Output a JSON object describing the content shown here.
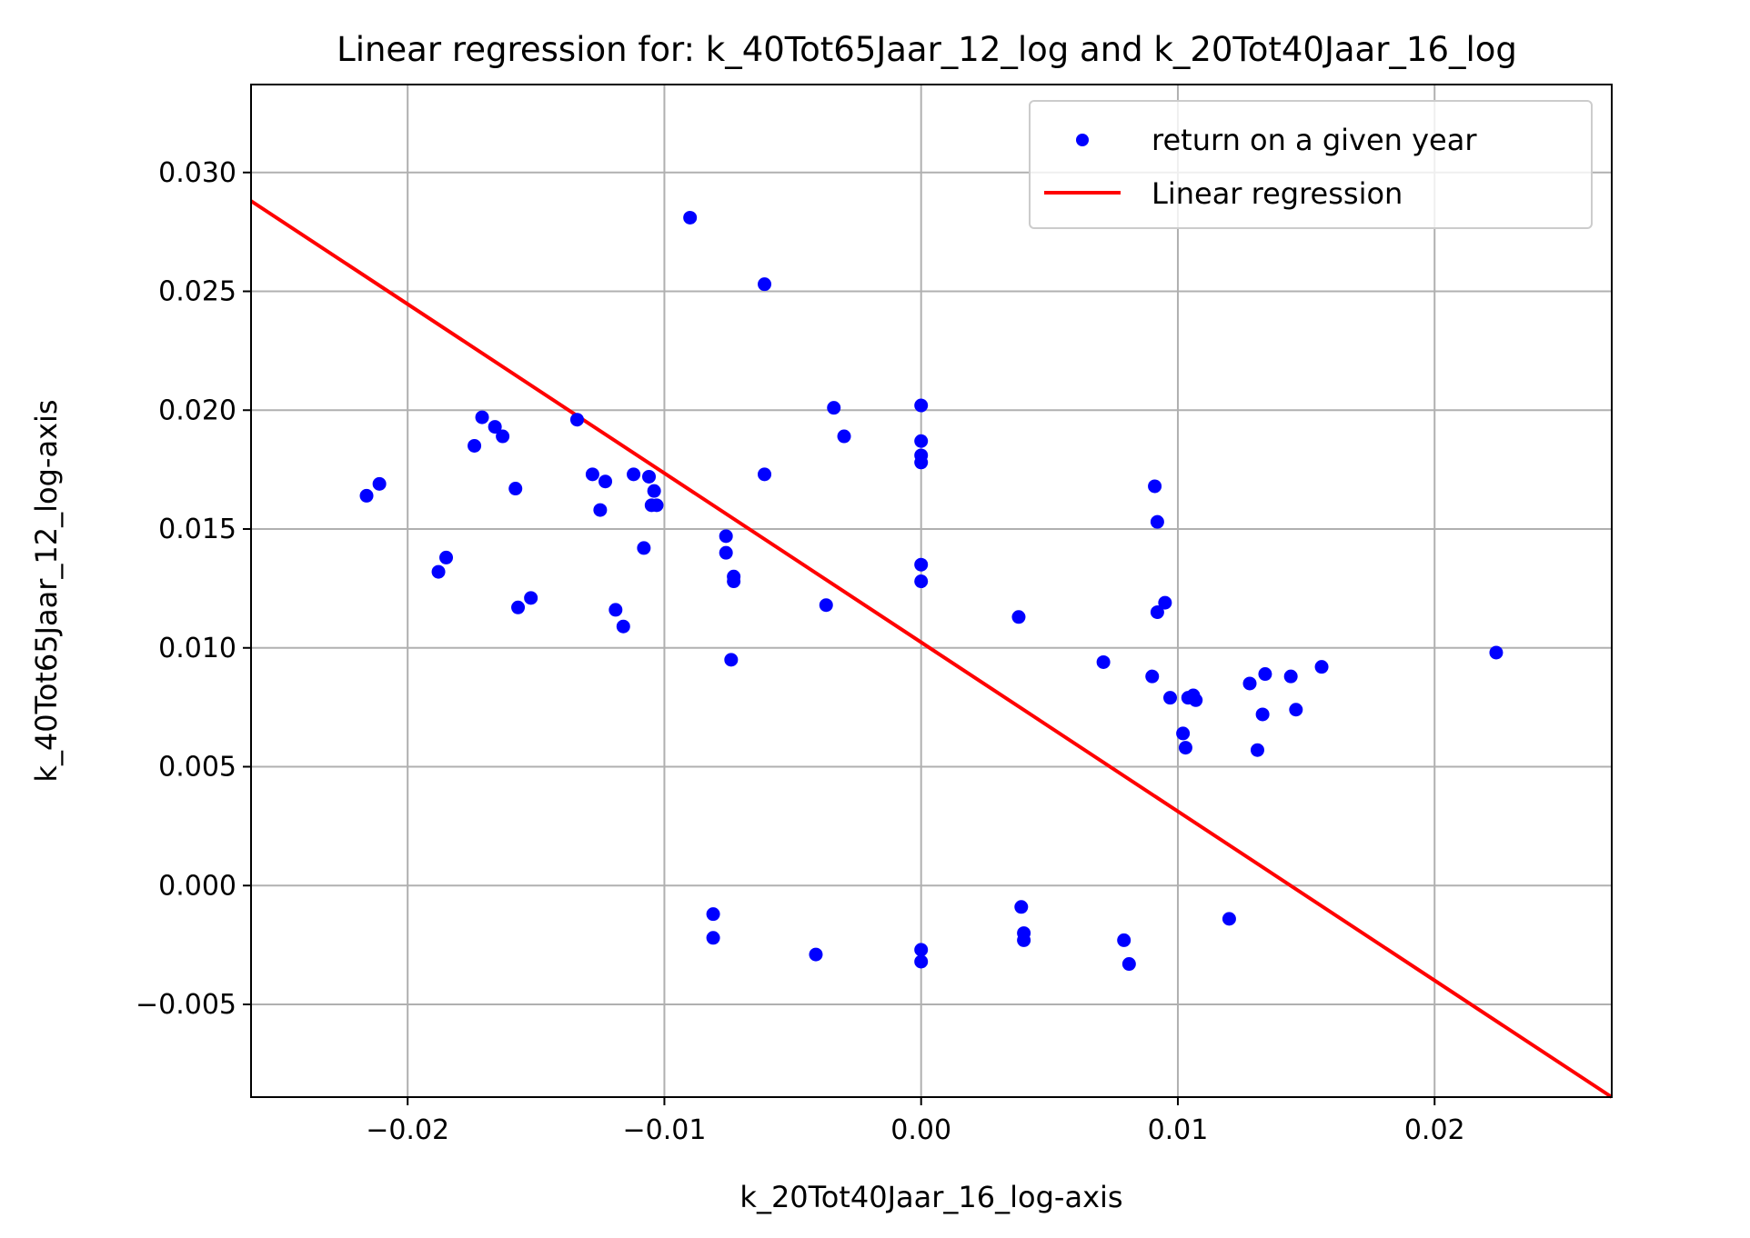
{
  "chart_data": {
    "type": "scatter",
    "title": "Linear regression for: k_40Tot65Jaar_12_log and k_20Tot40Jaar_16_log",
    "xlabel": "k_20Tot40Jaar_16_log-axis",
    "ylabel": "k_40Tot65Jaar_12_log-axis",
    "xlim": [
      -0.0261,
      0.0269
    ],
    "ylim": [
      -0.0089,
      0.0337
    ],
    "grid": true,
    "legend_position": "top-right",
    "x_ticks": [
      -0.02,
      -0.01,
      0.0,
      0.01,
      0.02
    ],
    "x_tick_labels": [
      "−0.02",
      "−0.01",
      "0.00",
      "0.01",
      "0.02"
    ],
    "y_ticks": [
      -0.005,
      0.0,
      0.005,
      0.01,
      0.015,
      0.02,
      0.025,
      0.03
    ],
    "y_tick_labels": [
      "−0.005",
      "0.000",
      "0.005",
      "0.010",
      "0.015",
      "0.020",
      "0.025",
      "0.030"
    ],
    "series": [
      {
        "name": "return on a given year",
        "kind": "scatter",
        "color": "#0000ff",
        "points": [
          [
            -0.0216,
            0.0164
          ],
          [
            -0.0211,
            0.0169
          ],
          [
            -0.0188,
            0.0132
          ],
          [
            -0.0185,
            0.0138
          ],
          [
            -0.0174,
            0.0185
          ],
          [
            -0.0171,
            0.0197
          ],
          [
            -0.0166,
            0.0193
          ],
          [
            -0.0163,
            0.0189
          ],
          [
            -0.0158,
            0.0167
          ],
          [
            -0.0157,
            0.0117
          ],
          [
            -0.0152,
            0.0121
          ],
          [
            -0.0134,
            0.0196
          ],
          [
            -0.0128,
            0.0173
          ],
          [
            -0.0125,
            0.0158
          ],
          [
            -0.0123,
            0.017
          ],
          [
            -0.0119,
            0.0116
          ],
          [
            -0.0116,
            0.0109
          ],
          [
            -0.0112,
            0.0173
          ],
          [
            -0.0108,
            0.0142
          ],
          [
            -0.0106,
            0.0172
          ],
          [
            -0.0105,
            0.016
          ],
          [
            -0.0104,
            0.0166
          ],
          [
            -0.0103,
            0.016
          ],
          [
            -0.009,
            0.0281
          ],
          [
            -0.0076,
            0.0147
          ],
          [
            -0.0076,
            0.014
          ],
          [
            -0.0074,
            0.0095
          ],
          [
            -0.0073,
            0.013
          ],
          [
            -0.0073,
            0.0128
          ],
          [
            -0.0061,
            0.0253
          ],
          [
            -0.0061,
            0.0173
          ],
          [
            -0.0037,
            0.0118
          ],
          [
            -0.0034,
            0.0201
          ],
          [
            -0.003,
            0.0189
          ],
          [
            0.0,
            0.0202
          ],
          [
            0.0,
            0.0187
          ],
          [
            0.0,
            0.0181
          ],
          [
            0.0,
            0.0178
          ],
          [
            0.0,
            0.0135
          ],
          [
            0.0,
            0.0128
          ],
          [
            0.0038,
            0.0113
          ],
          [
            0.0071,
            0.0094
          ],
          [
            0.009,
            0.0088
          ],
          [
            0.0091,
            0.0168
          ],
          [
            0.0092,
            0.0153
          ],
          [
            0.0092,
            0.0115
          ],
          [
            0.0095,
            0.0119
          ],
          [
            0.0097,
            0.0079
          ],
          [
            0.0102,
            0.0064
          ],
          [
            0.0103,
            0.0058
          ],
          [
            0.0104,
            0.0079
          ],
          [
            0.0106,
            0.008
          ],
          [
            0.0107,
            0.0078
          ],
          [
            0.0128,
            0.0085
          ],
          [
            0.0131,
            0.0057
          ],
          [
            0.0133,
            0.0072
          ],
          [
            0.0134,
            0.0089
          ],
          [
            0.0144,
            0.0088
          ],
          [
            0.0146,
            0.0074
          ],
          [
            0.0156,
            0.0092
          ],
          [
            0.0224,
            0.0098
          ],
          [
            -0.0081,
            -0.0012
          ],
          [
            -0.0081,
            -0.0022
          ],
          [
            -0.0041,
            -0.0029
          ],
          [
            0.0,
            -0.0027
          ],
          [
            0.0,
            -0.0032
          ],
          [
            0.0039,
            -0.0009
          ],
          [
            0.004,
            -0.002
          ],
          [
            0.004,
            -0.0023
          ],
          [
            0.0079,
            -0.0023
          ],
          [
            0.0081,
            -0.0033
          ],
          [
            0.012,
            -0.0014
          ]
        ]
      },
      {
        "name": "Linear regression",
        "kind": "line",
        "color": "#ff0000",
        "points": [
          [
            -0.0261,
            0.0288
          ],
          [
            0.0269,
            -0.0089
          ]
        ]
      }
    ]
  }
}
